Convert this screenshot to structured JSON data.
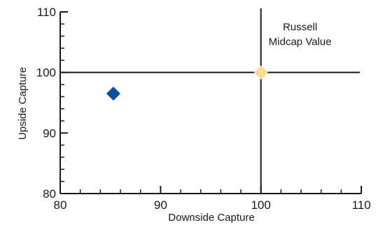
{
  "chart_data": {
    "type": "scatter",
    "title": "",
    "xlabel": "Downside Capture",
    "ylabel": "Upside Capture",
    "xlim": [
      80,
      110
    ],
    "ylim": [
      80,
      110
    ],
    "x_major_ticks": [
      80,
      90,
      100,
      110
    ],
    "y_major_ticks": [
      80,
      90,
      100,
      110
    ],
    "minor_tick_step": 2,
    "grid": false,
    "reference_lines": {
      "x": 100,
      "y": 100
    },
    "points": [
      {
        "x": 85.3,
        "y": 96.5,
        "color": "#0a4f9c",
        "marker": "diamond"
      },
      {
        "x": 100,
        "y": 100,
        "color": "#fddb95",
        "marker": "diamond"
      }
    ],
    "annotations": [
      {
        "text_lines": [
          "Russell",
          "Midcap Value"
        ],
        "x": 103.9,
        "y": 104.5
      }
    ]
  },
  "colors": {
    "axis": "#1a1a1a",
    "fund": "#0a4f9c",
    "benchmark": "#fddb95"
  }
}
